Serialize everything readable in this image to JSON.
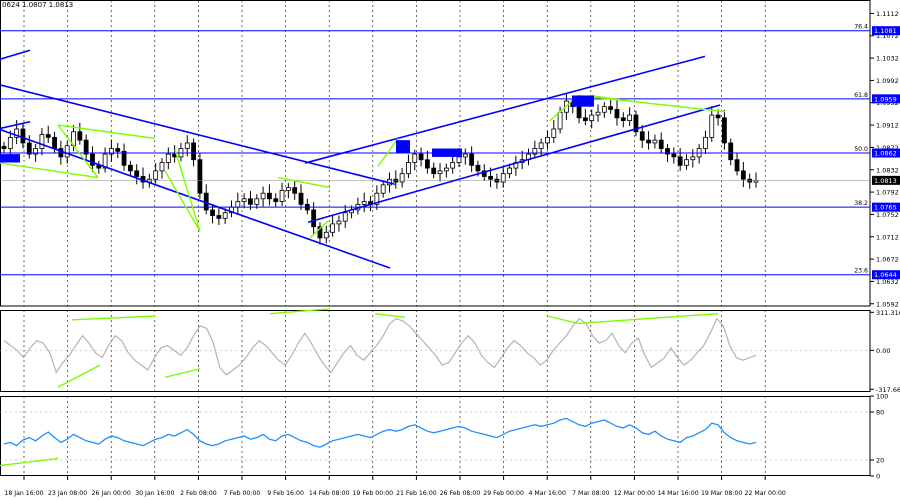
{
  "ohlc_readout": "0624 1.0807 1.0813",
  "colors": {
    "background": "#ffffff",
    "candle": "#000000",
    "level_line": "#0000ff",
    "channel_line": "#0000ff",
    "marker": "#0000ff",
    "divergence_line": "#7cfc00",
    "cci_line": "#b4b4b4",
    "rsi_line": "#1e90ff",
    "grid": "#000000",
    "price_tag_bg": "#0000ff",
    "current_tag_bg": "#000000"
  },
  "chart_data": [
    {
      "type": "candlestick",
      "name": "main",
      "y_ticks": [
        "1.1112",
        "1.1072",
        "1.1032",
        "1.0992",
        "1.0952",
        "1.0912",
        "1.0872",
        "1.0832",
        "1.0792",
        "1.0752",
        "1.0712",
        "1.0672",
        "1.0632",
        "1.0592"
      ],
      "ylim": [
        1.0588,
        1.1136
      ],
      "x_labels": [
        "18 Jan 16:00",
        "23 Jan 08:00",
        "26 Jan 00:00",
        "30 Jan 16:00",
        "2 Feb 08:00",
        "7 Feb 00:00",
        "9 Feb 16:00",
        "14 Feb 08:00",
        "19 Feb 00:00",
        "21 Feb 16:00",
        "26 Feb 08:00",
        "29 Feb 00:00",
        "4 Mar 16:00",
        "7 Mar 08:00",
        "12 Mar 00:00",
        "14 Mar 16:00",
        "19 Mar 08:00",
        "22 Mar 00:00"
      ],
      "levels": [
        {
          "label": "76.4",
          "value": 1.1081
        },
        {
          "label": "61.8",
          "value": 1.0959
        },
        {
          "label": "50.0",
          "value": 1.0862
        },
        {
          "label": "38.2",
          "value": 1.0765
        },
        {
          "label": "23.6",
          "value": 1.0644
        }
      ],
      "price_tags": [
        "1.1081",
        "1.0959",
        "1.0862",
        "1.0765",
        "1.0644"
      ],
      "current_price": "1.0813",
      "series_close": [
        1.087,
        1.089,
        1.0905,
        1.088,
        1.086,
        1.087,
        1.0895,
        1.089,
        1.087,
        1.0855,
        1.0875,
        1.09,
        1.0885,
        1.086,
        1.084,
        1.0835,
        1.086,
        1.087,
        1.0865,
        1.084,
        1.083,
        1.082,
        1.081,
        1.0815,
        1.083,
        1.0845,
        1.086,
        1.0855,
        1.087,
        1.088,
        1.085,
        1.079,
        1.076,
        1.075,
        1.0745,
        1.0755,
        1.0765,
        1.0775,
        1.078,
        1.077,
        1.078,
        1.079,
        1.078,
        1.0775,
        1.0795,
        1.08,
        1.079,
        1.077,
        1.076,
        1.073,
        1.071,
        1.072,
        1.0735,
        1.074,
        1.0755,
        1.076,
        1.077,
        1.0775,
        1.077,
        1.079,
        1.0805,
        1.0815,
        1.081,
        1.0825,
        1.0845,
        1.086,
        1.085,
        1.0835,
        1.0825,
        1.083,
        1.0835,
        1.0845,
        1.0855,
        1.086,
        1.084,
        1.083,
        1.082,
        1.0815,
        1.081,
        1.0825,
        1.0835,
        1.0845,
        1.085,
        1.086,
        1.087,
        1.088,
        1.089,
        1.0905,
        1.0935,
        1.0955,
        1.0945,
        1.0925,
        1.092,
        1.093,
        1.0935,
        1.0945,
        1.094,
        1.0925,
        1.092,
        1.093,
        1.09,
        1.0885,
        1.088,
        1.0885,
        1.087,
        1.086,
        1.0855,
        1.084,
        1.085,
        1.0855,
        1.087,
        1.089,
        1.093,
        1.0925,
        1.088,
        1.085,
        1.083,
        1.0815,
        1.081,
        1.0813
      ]
    },
    {
      "type": "line",
      "name": "cci",
      "y_ticks": [
        "311.3165",
        "0.00",
        "-317.660"
      ],
      "ylim": [
        -340,
        330
      ],
      "values": [
        80,
        40,
        0,
        -60,
        20,
        80,
        60,
        -20,
        -180,
        -100,
        -40,
        40,
        120,
        60,
        -20,
        -60,
        40,
        120,
        80,
        -20,
        -80,
        -120,
        -160,
        -60,
        20,
        40,
        0,
        -40,
        20,
        120,
        200,
        180,
        60,
        -140,
        -200,
        -160,
        -120,
        -60,
        20,
        80,
        40,
        -20,
        -80,
        -120,
        -40,
        60,
        140,
        60,
        -40,
        -120,
        -180,
        -100,
        -20,
        40,
        -40,
        -80,
        -20,
        40,
        120,
        220,
        260,
        240,
        200,
        140,
        80,
        20,
        -40,
        -120,
        -100,
        -20,
        60,
        120,
        60,
        -40,
        -100,
        -140,
        -60,
        20,
        80,
        40,
        -20,
        -60,
        -120,
        -80,
        0,
        60,
        120,
        200,
        260,
        220,
        120,
        60,
        80,
        140,
        40,
        -20,
        60,
        100,
        -40,
        -140,
        -100,
        -60,
        20,
        -60,
        -120,
        -80,
        -20,
        40,
        140,
        260,
        200,
        40,
        -60,
        -80,
        -60,
        -40
      ]
    },
    {
      "type": "line",
      "name": "rsi",
      "y_ticks": [
        "100",
        "80",
        "20",
        "0"
      ],
      "ylim": [
        0,
        100
      ],
      "values": [
        40,
        42,
        38,
        45,
        48,
        44,
        50,
        55,
        48,
        42,
        46,
        52,
        48,
        44,
        42,
        40,
        46,
        50,
        48,
        44,
        42,
        40,
        38,
        42,
        46,
        48,
        52,
        50,
        54,
        58,
        52,
        44,
        40,
        38,
        40,
        44,
        46,
        48,
        50,
        46,
        48,
        52,
        46,
        44,
        50,
        52,
        48,
        44,
        42,
        38,
        36,
        40,
        44,
        46,
        48,
        50,
        52,
        50,
        48,
        52,
        56,
        58,
        56,
        58,
        62,
        64,
        60,
        56,
        54,
        56,
        58,
        60,
        62,
        60,
        56,
        54,
        52,
        50,
        48,
        52,
        56,
        58,
        60,
        62,
        64,
        62,
        64,
        66,
        70,
        72,
        68,
        64,
        62,
        66,
        68,
        70,
        66,
        62,
        60,
        64,
        60,
        54,
        52,
        56,
        50,
        46,
        44,
        42,
        48,
        50,
        54,
        58,
        66,
        64,
        54,
        48,
        44,
        42,
        40,
        42
      ]
    }
  ]
}
